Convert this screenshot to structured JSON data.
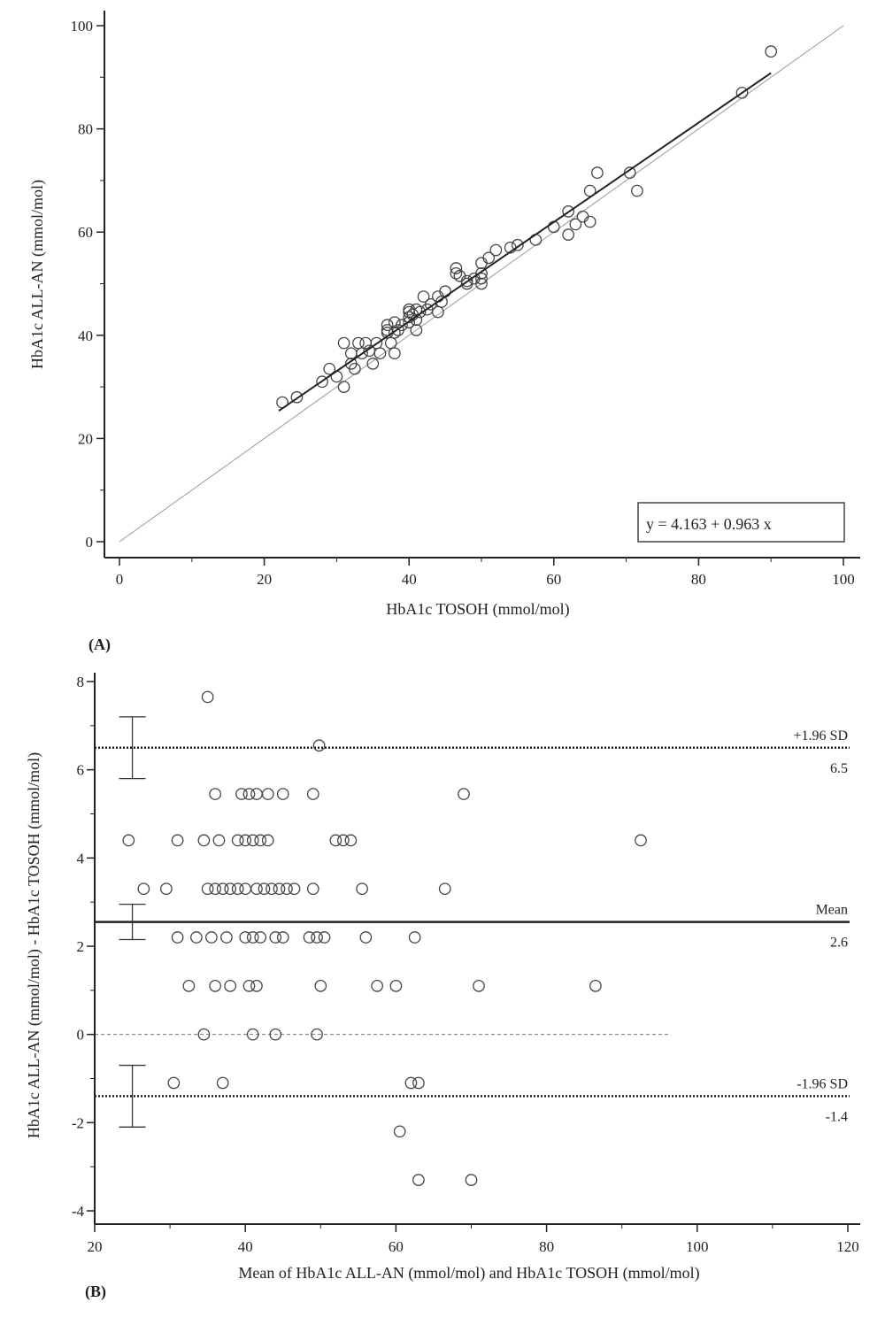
{
  "chart_data": [
    {
      "type": "scatter",
      "panel_label": "(A)",
      "xlabel": "HbA1c TOSOH (mmol/mol)",
      "ylabel": "HbA1c ALL-AN (mmol/mol)",
      "xlim": [
        0,
        100
      ],
      "ylim": [
        0,
        100
      ],
      "xticks": [
        0,
        20,
        40,
        60,
        80,
        100
      ],
      "yticks": [
        0,
        20,
        40,
        60,
        80,
        100
      ],
      "grid": false,
      "regression": {
        "intercept": 4.163,
        "slope": 0.963,
        "x_range": [
          22,
          90
        ],
        "equation_label": "y = 4.163 + 0.963 x"
      },
      "identity_line": {
        "x_range": [
          0,
          100
        ]
      },
      "points": [
        [
          22.5,
          27
        ],
        [
          24.5,
          28
        ],
        [
          28,
          31
        ],
        [
          29,
          33.5
        ],
        [
          30,
          32
        ],
        [
          31,
          38.5
        ],
        [
          31,
          30
        ],
        [
          32,
          36.5
        ],
        [
          32,
          34.5
        ],
        [
          32.5,
          33.5
        ],
        [
          33,
          38.5
        ],
        [
          33.5,
          36.5
        ],
        [
          34,
          38.5
        ],
        [
          34.5,
          37
        ],
        [
          35,
          34.5
        ],
        [
          35.5,
          38.5
        ],
        [
          36,
          36.5
        ],
        [
          37,
          40.5
        ],
        [
          37,
          42
        ],
        [
          37,
          41
        ],
        [
          37.5,
          38.5
        ],
        [
          38,
          42.5
        ],
        [
          38,
          36.5
        ],
        [
          38,
          40.5
        ],
        [
          38.5,
          41
        ],
        [
          39,
          42
        ],
        [
          40,
          43.5
        ],
        [
          40,
          44.5
        ],
        [
          40,
          45
        ],
        [
          40,
          42.5
        ],
        [
          40.5,
          44
        ],
        [
          41,
          43
        ],
        [
          41,
          45
        ],
        [
          41,
          41
        ],
        [
          41.5,
          44.5
        ],
        [
          42,
          47.5
        ],
        [
          42.5,
          45
        ],
        [
          43,
          46
        ],
        [
          44,
          47.5
        ],
        [
          44,
          44.5
        ],
        [
          44.5,
          46.5
        ],
        [
          45,
          48.5
        ],
        [
          46.5,
          53
        ],
        [
          46.5,
          52
        ],
        [
          47,
          51.5
        ],
        [
          48,
          50.5
        ],
        [
          48,
          50
        ],
        [
          49,
          51
        ],
        [
          50,
          54
        ],
        [
          50,
          50
        ],
        [
          50,
          51
        ],
        [
          50,
          52
        ],
        [
          51,
          55
        ],
        [
          52,
          56.5
        ],
        [
          54,
          57
        ],
        [
          55,
          57.5
        ],
        [
          57.5,
          58.5
        ],
        [
          60,
          61
        ],
        [
          62,
          64
        ],
        [
          62,
          59.5
        ],
        [
          63,
          61.5
        ],
        [
          64,
          63
        ],
        [
          65,
          62
        ],
        [
          65,
          68
        ],
        [
          66,
          71.5
        ],
        [
          70.5,
          71.5
        ],
        [
          71.5,
          68
        ],
        [
          86,
          87
        ],
        [
          90,
          95
        ]
      ]
    },
    {
      "type": "scatter",
      "panel_label": "(B)",
      "xlabel": "Mean of HbA1c ALL-AN (mmol/mol) and HbA1c TOSOH (mmol/mol)",
      "ylabel": "HbA1c ALL-AN (mmol/mol) - HbA1c TOSOH (mmol/mol)",
      "xlim": [
        20,
        120
      ],
      "ylim": [
        -4,
        8
      ],
      "xticks": [
        20,
        40,
        60,
        80,
        100,
        120
      ],
      "yticks": [
        -4,
        -2,
        0,
        2,
        4,
        6,
        8
      ],
      "grid": false,
      "reference_lines": [
        {
          "name": "+1.96 SD",
          "value_label": "6.5",
          "y": 6.5,
          "ci": [
            5.8,
            7.2
          ],
          "style": "dotted"
        },
        {
          "name": "Mean",
          "value_label": "2.6",
          "y": 2.55,
          "ci": [
            2.15,
            2.95
          ],
          "style": "solid"
        },
        {
          "name": "-1.96 SD",
          "value_label": "-1.4",
          "y": -1.4,
          "ci": [
            -2.1,
            -0.7
          ],
          "style": "dotted"
        }
      ],
      "zero_line": {
        "y": 0,
        "x_range": [
          20,
          96.5
        ]
      },
      "ci_x": 25,
      "points": [
        [
          35,
          7.65
        ],
        [
          49.8,
          6.55
        ],
        [
          36,
          5.45
        ],
        [
          39.5,
          5.45
        ],
        [
          40.5,
          5.45
        ],
        [
          41.5,
          5.45
        ],
        [
          43,
          5.45
        ],
        [
          45,
          5.45
        ],
        [
          49,
          5.45
        ],
        [
          69,
          5.45
        ],
        [
          24.5,
          4.4
        ],
        [
          31,
          4.4
        ],
        [
          34.5,
          4.4
        ],
        [
          36.5,
          4.4
        ],
        [
          39,
          4.4
        ],
        [
          40,
          4.4
        ],
        [
          41,
          4.4
        ],
        [
          42,
          4.4
        ],
        [
          43,
          4.4
        ],
        [
          52,
          4.4
        ],
        [
          53,
          4.4
        ],
        [
          54,
          4.4
        ],
        [
          92.5,
          4.4
        ],
        [
          26.5,
          3.3
        ],
        [
          29.5,
          3.3
        ],
        [
          35,
          3.3
        ],
        [
          36,
          3.3
        ],
        [
          37,
          3.3
        ],
        [
          38,
          3.3
        ],
        [
          39,
          3.3
        ],
        [
          40,
          3.3
        ],
        [
          41.5,
          3.3
        ],
        [
          42.5,
          3.3
        ],
        [
          43.5,
          3.3
        ],
        [
          44.5,
          3.3
        ],
        [
          45.5,
          3.3
        ],
        [
          46.5,
          3.3
        ],
        [
          49,
          3.3
        ],
        [
          55.5,
          3.3
        ],
        [
          66.5,
          3.3
        ],
        [
          31,
          2.2
        ],
        [
          33.5,
          2.2
        ],
        [
          35.5,
          2.2
        ],
        [
          37.5,
          2.2
        ],
        [
          40,
          2.2
        ],
        [
          41,
          2.2
        ],
        [
          42,
          2.2
        ],
        [
          44,
          2.2
        ],
        [
          45,
          2.2
        ],
        [
          48.5,
          2.2
        ],
        [
          49.5,
          2.2
        ],
        [
          50.5,
          2.2
        ],
        [
          56,
          2.2
        ],
        [
          62.5,
          2.2
        ],
        [
          32.5,
          1.1
        ],
        [
          36,
          1.1
        ],
        [
          38,
          1.1
        ],
        [
          40.5,
          1.1
        ],
        [
          41.5,
          1.1
        ],
        [
          50,
          1.1
        ],
        [
          57.5,
          1.1
        ],
        [
          60,
          1.1
        ],
        [
          71,
          1.1
        ],
        [
          86.5,
          1.1
        ],
        [
          34.5,
          0
        ],
        [
          41,
          0
        ],
        [
          44,
          0
        ],
        [
          49.5,
          0
        ],
        [
          30.5,
          -1.1
        ],
        [
          37,
          -1.1
        ],
        [
          62,
          -1.1
        ],
        [
          63,
          -1.1
        ],
        [
          60.5,
          -2.2
        ],
        [
          63,
          -3.3
        ],
        [
          70,
          -3.3
        ]
      ]
    }
  ]
}
